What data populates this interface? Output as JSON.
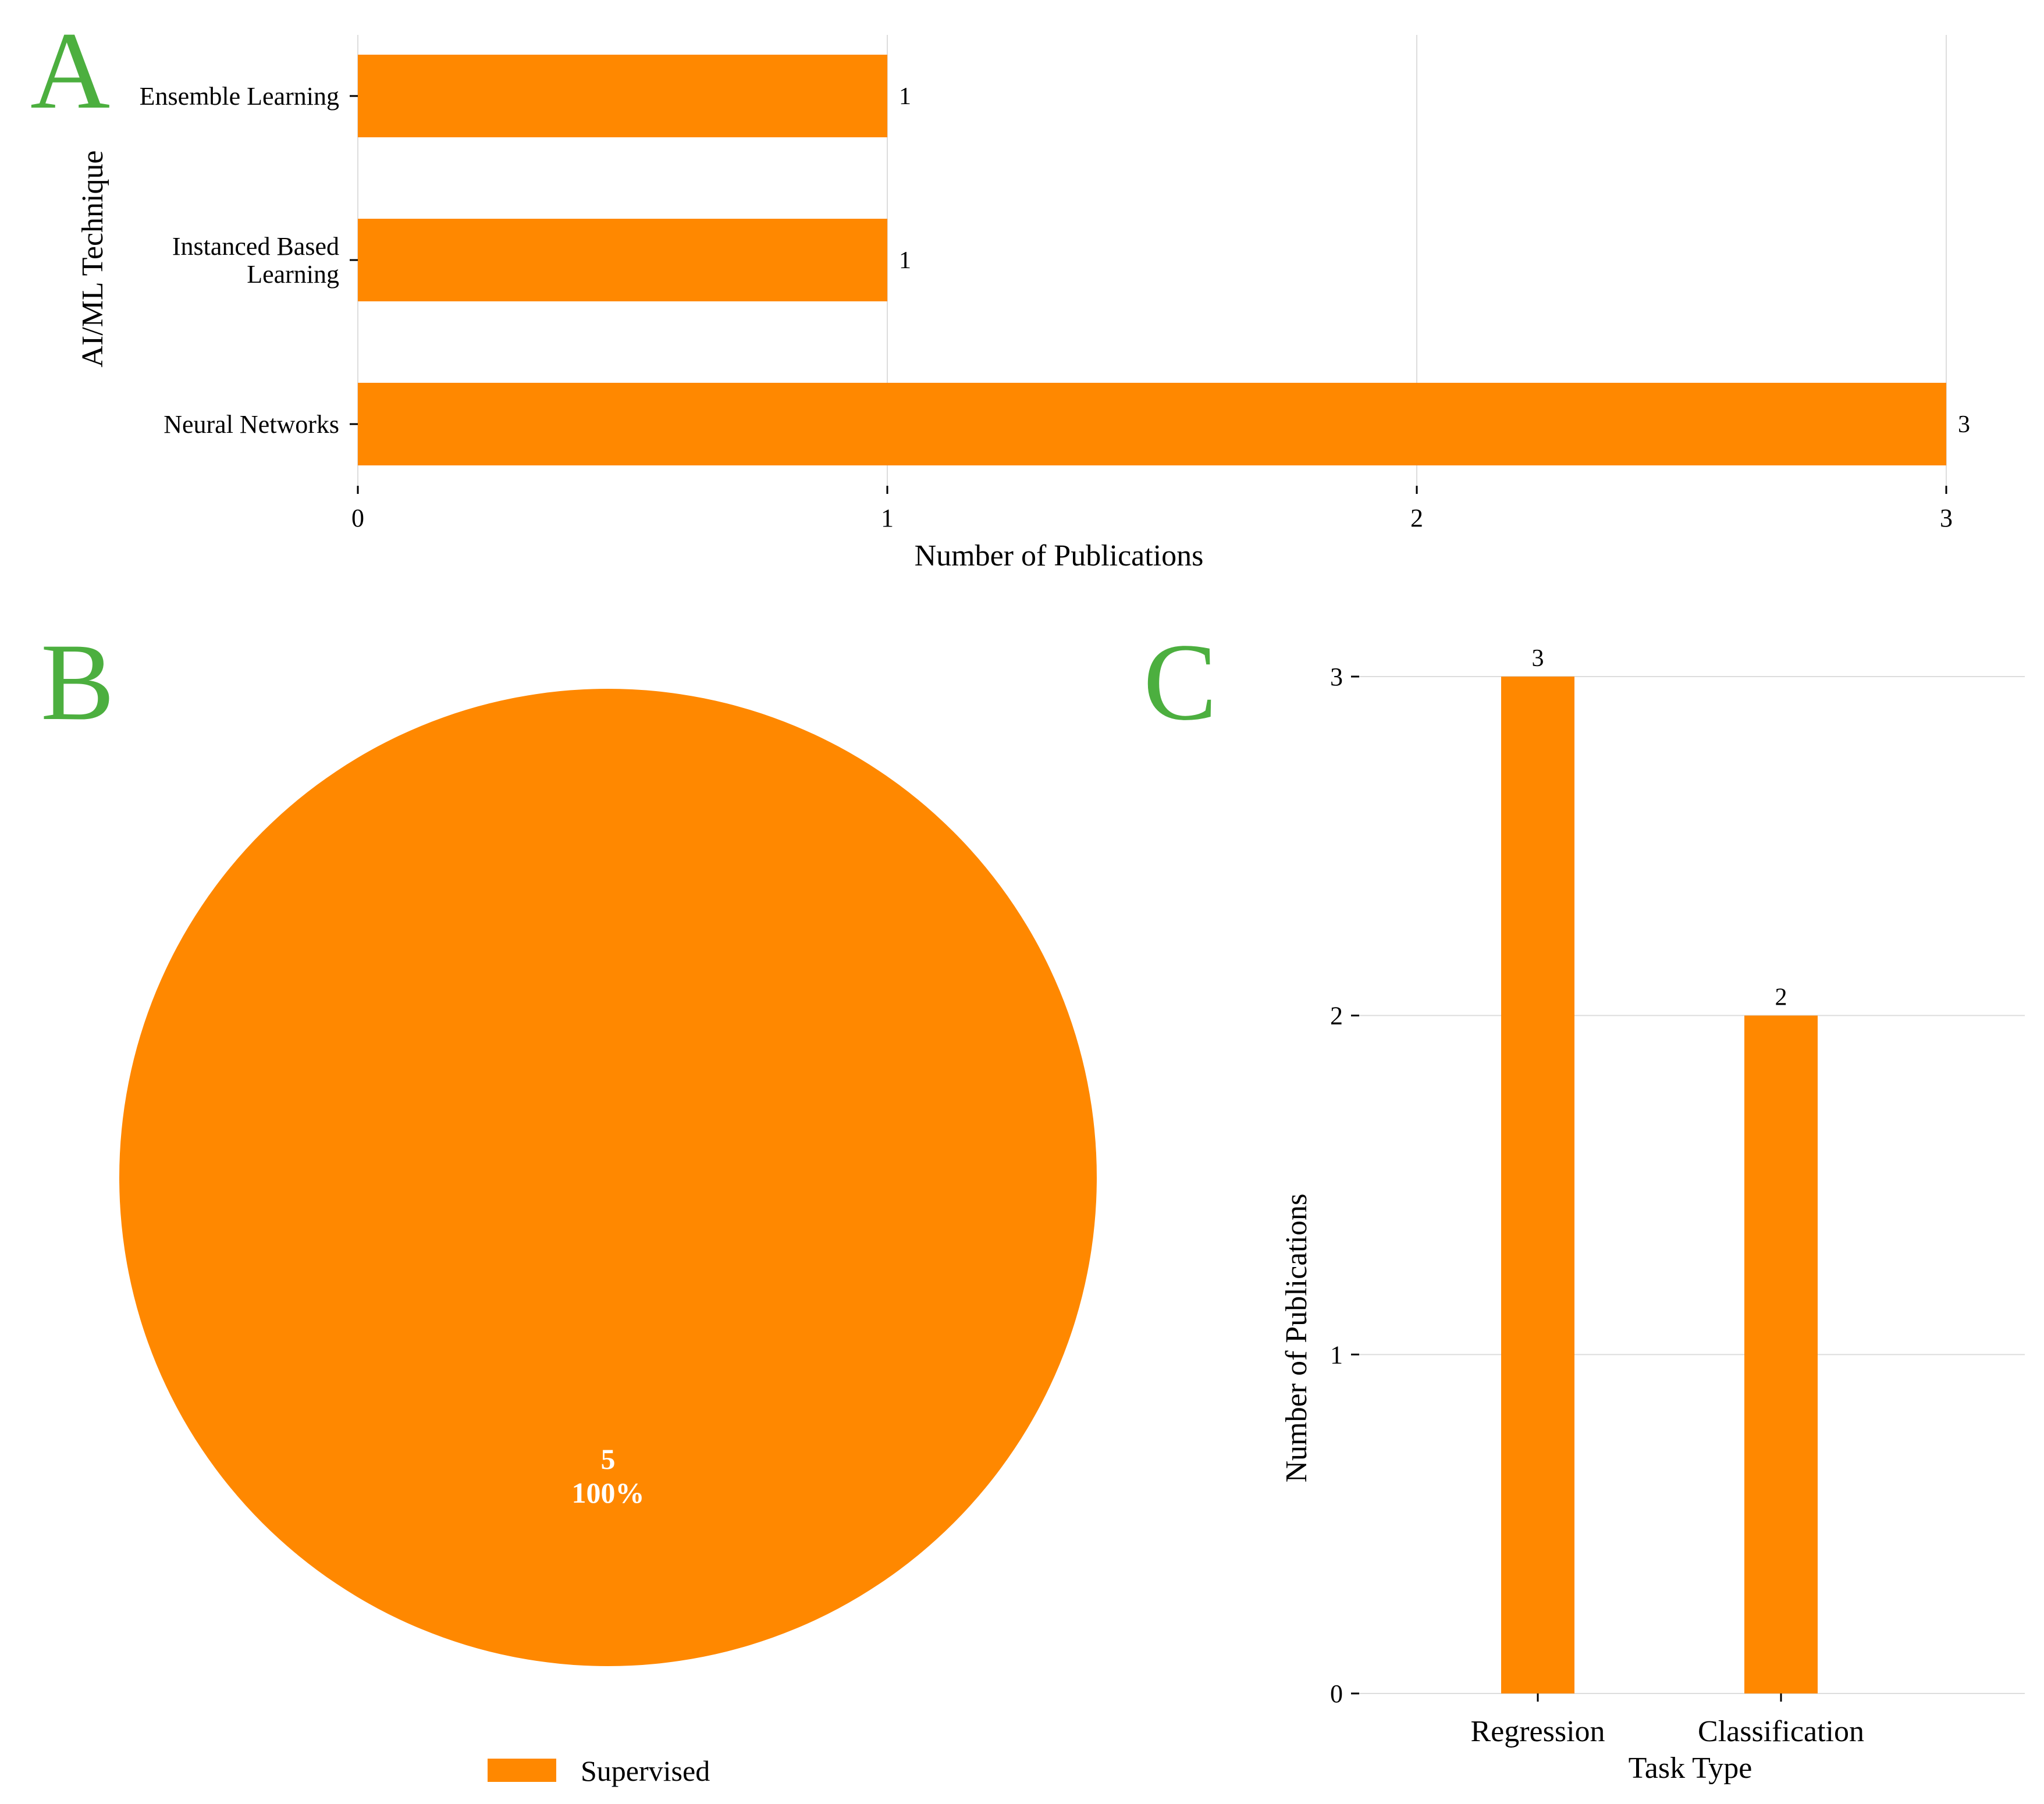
{
  "colors": {
    "bar": "#ff8800",
    "panel_letter": "#4caf3f",
    "grid": "#dddddd"
  },
  "chart_data": [
    {
      "panel": "A",
      "type": "bar",
      "orientation": "horizontal",
      "categories": [
        "Ensemble Learning",
        "Instanced Based Learning",
        "Neural Networks"
      ],
      "category_lines": [
        [
          "Ensemble Learning"
        ],
        [
          "Instanced Based",
          "Learning"
        ],
        [
          "Neural Networks"
        ]
      ],
      "values": [
        1,
        1,
        3
      ],
      "data_labels": [
        "1",
        "1",
        "3"
      ],
      "xlabel": "Number of Publications",
      "ylabel": "AI/ML Technique",
      "xlim": [
        0,
        3
      ],
      "xticks": [
        0,
        1,
        2,
        3
      ],
      "grid": true
    },
    {
      "panel": "B",
      "type": "pie",
      "labels": [
        "Supervised"
      ],
      "values": [
        5
      ],
      "slice_labels": [
        [
          "5",
          "100%"
        ]
      ],
      "legend": [
        "Supervised"
      ],
      "legend_position": "bottom"
    },
    {
      "panel": "C",
      "type": "bar",
      "orientation": "vertical",
      "categories": [
        "Regression",
        "Classification"
      ],
      "values": [
        3,
        2
      ],
      "data_labels": [
        "3",
        "2"
      ],
      "xlabel": "Task Type",
      "ylabel": "Number of Publications",
      "ylim": [
        0,
        3
      ],
      "yticks": [
        0,
        1,
        2,
        3
      ],
      "grid": true
    }
  ]
}
